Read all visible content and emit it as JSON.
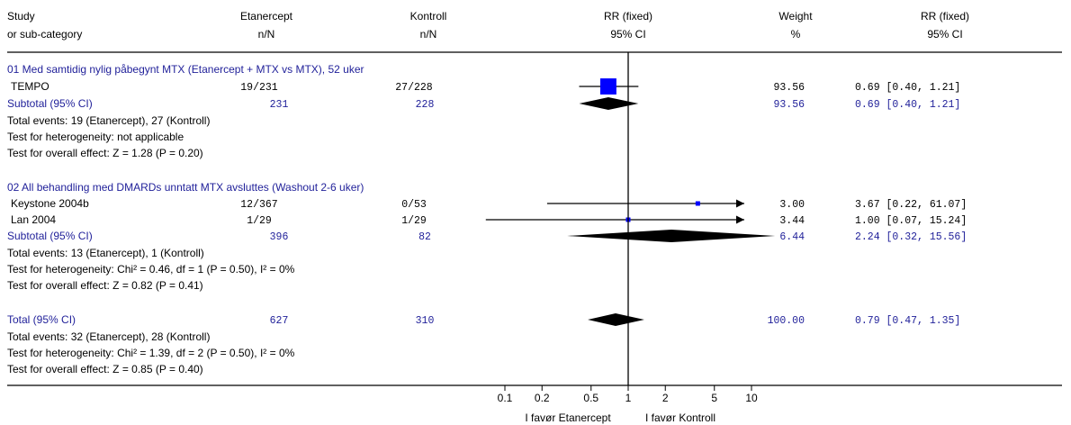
{
  "headers": {
    "study": [
      "Study",
      "or sub-category"
    ],
    "treat": [
      "Etanercept",
      "n/N"
    ],
    "ctrl": [
      "Kontroll",
      "n/N"
    ],
    "rr_plot": [
      "RR (fixed)",
      "95% CI"
    ],
    "weight": [
      "Weight",
      "%"
    ],
    "rr_text": [
      "RR (fixed)",
      "95% CI"
    ]
  },
  "colors": {
    "text": "#000000",
    "blue": "#1f1f99",
    "marker": "#0000ff",
    "axis": "#000000"
  },
  "chart_data": {
    "type": "forest",
    "x_scale": "log",
    "xlim": [
      0.1,
      10
    ],
    "x_ticks": [
      {
        "value": 0.1,
        "label": "0.1"
      },
      {
        "value": 0.2,
        "label": "0.2"
      },
      {
        "value": 0.5,
        "label": "0.5"
      },
      {
        "value": 1,
        "label": "1"
      },
      {
        "value": 2,
        "label": "2"
      },
      {
        "value": 5,
        "label": "5"
      },
      {
        "value": 10,
        "label": "10"
      }
    ],
    "favours_left": "I favør Etanercept",
    "favours_right": "I favør Kontroll",
    "groups": [
      {
        "title": "01 Med samtidig nylig påbegynt MTX (Etanercept + MTX vs MTX), 52 uker",
        "studies": [
          {
            "name": "TEMPO",
            "treat": "19/231",
            "ctrl": "27/228",
            "weight_text": "93.56",
            "ci_text": "0.69 [0.40, 1.21]",
            "rr": 0.69,
            "lo": 0.4,
            "hi": 1.21,
            "weight": 93.56
          }
        ],
        "subtotal": {
          "label": "Subtotal (95% CI)",
          "treat": "231",
          "ctrl": "228",
          "weight_text": "93.56",
          "ci_text": "0.69 [0.40, 1.21]",
          "rr": 0.69,
          "lo": 0.4,
          "hi": 1.21
        },
        "notes": [
          "Total events: 19 (Etanercept), 27 (Kontroll)",
          "Test for heterogeneity: not applicable",
          "Test for overall effect: Z = 1.28 (P = 0.20)"
        ]
      },
      {
        "title": "02 All behandling med DMARDs unntatt MTX avsluttes (Washout 2-6 uker)",
        "studies": [
          {
            "name": "Keystone 2004b",
            "treat": "12/367",
            "ctrl": "0/53",
            "weight_text": "3.00",
            "ci_text": "3.67 [0.22, 61.07]",
            "rr": 3.67,
            "lo": 0.22,
            "hi": 61.07,
            "weight": 3.0
          },
          {
            "name": "Lan 2004",
            "treat": "1/29",
            "ctrl": "1/29",
            "weight_text": "3.44",
            "ci_text": "1.00 [0.07, 15.24]",
            "rr": 1.0,
            "lo": 0.07,
            "hi": 15.24,
            "weight": 3.44
          }
        ],
        "subtotal": {
          "label": "Subtotal (95% CI)",
          "treat": "396",
          "ctrl": "82",
          "weight_text": "6.44",
          "ci_text": "2.24 [0.32, 15.56]",
          "rr": 2.24,
          "lo": 0.32,
          "hi": 15.56
        },
        "notes": [
          "Total events: 13 (Etanercept), 1 (Kontroll)",
          "Test for heterogeneity: Chi² = 0.46, df = 1 (P = 0.50), I² = 0%",
          "Test for overall effect: Z = 0.82 (P = 0.41)"
        ]
      }
    ],
    "total": {
      "label": "Total (95% CI)",
      "treat": "627",
      "ctrl": "310",
      "weight_text": "100.00",
      "ci_text": "0.79 [0.47, 1.35]",
      "rr": 0.79,
      "lo": 0.47,
      "hi": 1.35,
      "notes": [
        "Total events: 32 (Etanercept), 28 (Kontroll)",
        "Test for heterogeneity: Chi² = 1.39, df = 2 (P = 0.50), I² = 0%",
        "Test for overall effect: Z = 0.85 (P = 0.40)"
      ]
    }
  }
}
